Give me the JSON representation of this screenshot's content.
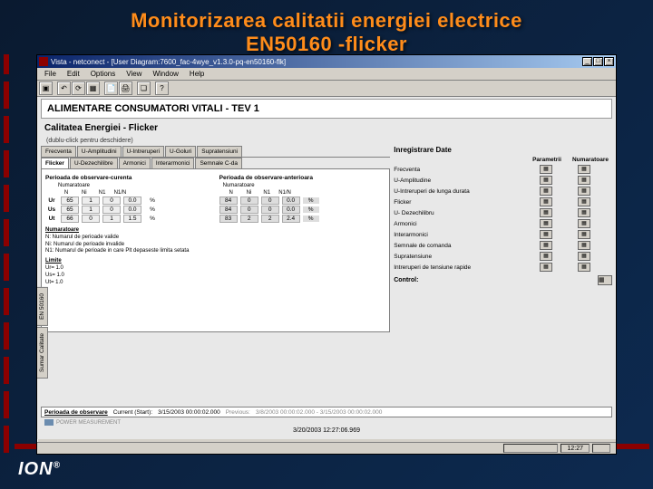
{
  "slide_title_l1": "Monitorizarea calitatii energiei electrice",
  "slide_title_l2": "EN50160 -flicker",
  "titlebar": "Vista - netconect - [User Diagram:7600_fac-4wye_v1.3.0-pq-en50160-flk]",
  "menu": {
    "file": "File",
    "edit": "Edit",
    "options": "Options",
    "view": "View",
    "window": "Window",
    "help": "Help"
  },
  "hdr1": "ALIMENTARE CONSUMATORI VITALI - TEV 1",
  "hdr2": "Calitatea Energiei - Flicker",
  "hint": "(dublu-click pentru deschidere)",
  "tabs_row1": [
    "Frecventa",
    "U-Amplitudini",
    "U-Intreruperi",
    "U-Goluri",
    "Supratensiuni"
  ],
  "tabs_row2": [
    "Flicker",
    "U-Dezechilibre",
    "Armonici",
    "Interarmonici",
    "Semnale C-da"
  ],
  "sec_cur": "Perioada de observare-curenta",
  "sec_prev": "Perioada de observare-anterioara",
  "num_lbl": "Numaratoare",
  "col_hdr": [
    "N",
    "Ni",
    "N1",
    "N1/N"
  ],
  "rows_cur": [
    {
      "l": "Ur",
      "v": [
        "65",
        "1",
        "0",
        "0.0",
        "%"
      ]
    },
    {
      "l": "Us",
      "v": [
        "65",
        "1",
        "0",
        "0.0",
        "%"
      ]
    },
    {
      "l": "Ut",
      "v": [
        "66",
        "0",
        "1",
        "1.5",
        "%"
      ]
    }
  ],
  "rows_prev": [
    {
      "l": "",
      "v": [
        "84",
        "0",
        "0",
        "0.0",
        "%"
      ]
    },
    {
      "l": "",
      "v": [
        "84",
        "0",
        "0",
        "0.0",
        "%"
      ]
    },
    {
      "l": "",
      "v": [
        "83",
        "2",
        "2",
        "2.4",
        "%"
      ]
    }
  ],
  "notes_title": "Numaratoare",
  "notes": [
    "N:   Numarul de perioade valide",
    "Ni:   Numarul de perioade invalide",
    "N1:  Numarul de perioade in care Plt depaseste limita setata"
  ],
  "limits_title": "Limite",
  "limits": [
    "Ur=  1.0",
    "Us=  1.0",
    "Ut=  1.0"
  ],
  "right_title": "Inregistrare Date",
  "right_hdr": {
    "p": "Parametrii",
    "n": "Numaratoare"
  },
  "right_rows": [
    "Frecventa",
    "U-Amplitudine",
    "U-Intreruperi de lunga durata",
    "Flicker",
    "U- Dezechilibru",
    "Armonici",
    "Interarmonici",
    "Semnale de comanda",
    "Supratensiune",
    "Intreruperi de tensiune rapide"
  ],
  "control": "Control:",
  "side_tabs": [
    "EN 50160",
    "Sumar Calitate"
  ],
  "period": {
    "lbl": "Perioada de observare",
    "cur": "Current (Start):",
    "cur_v": "3/15/2003 00:00:02.000",
    "prev": "Previous:",
    "prev_v": "3/8/2003 00:00:02.000 - 3/15/2003 00:00:02.000"
  },
  "timestamp": "3/20/2003 12:27:06.969",
  "pm": "POWER MEASUREMENT",
  "status_time": "12:27",
  "ion": "ION"
}
